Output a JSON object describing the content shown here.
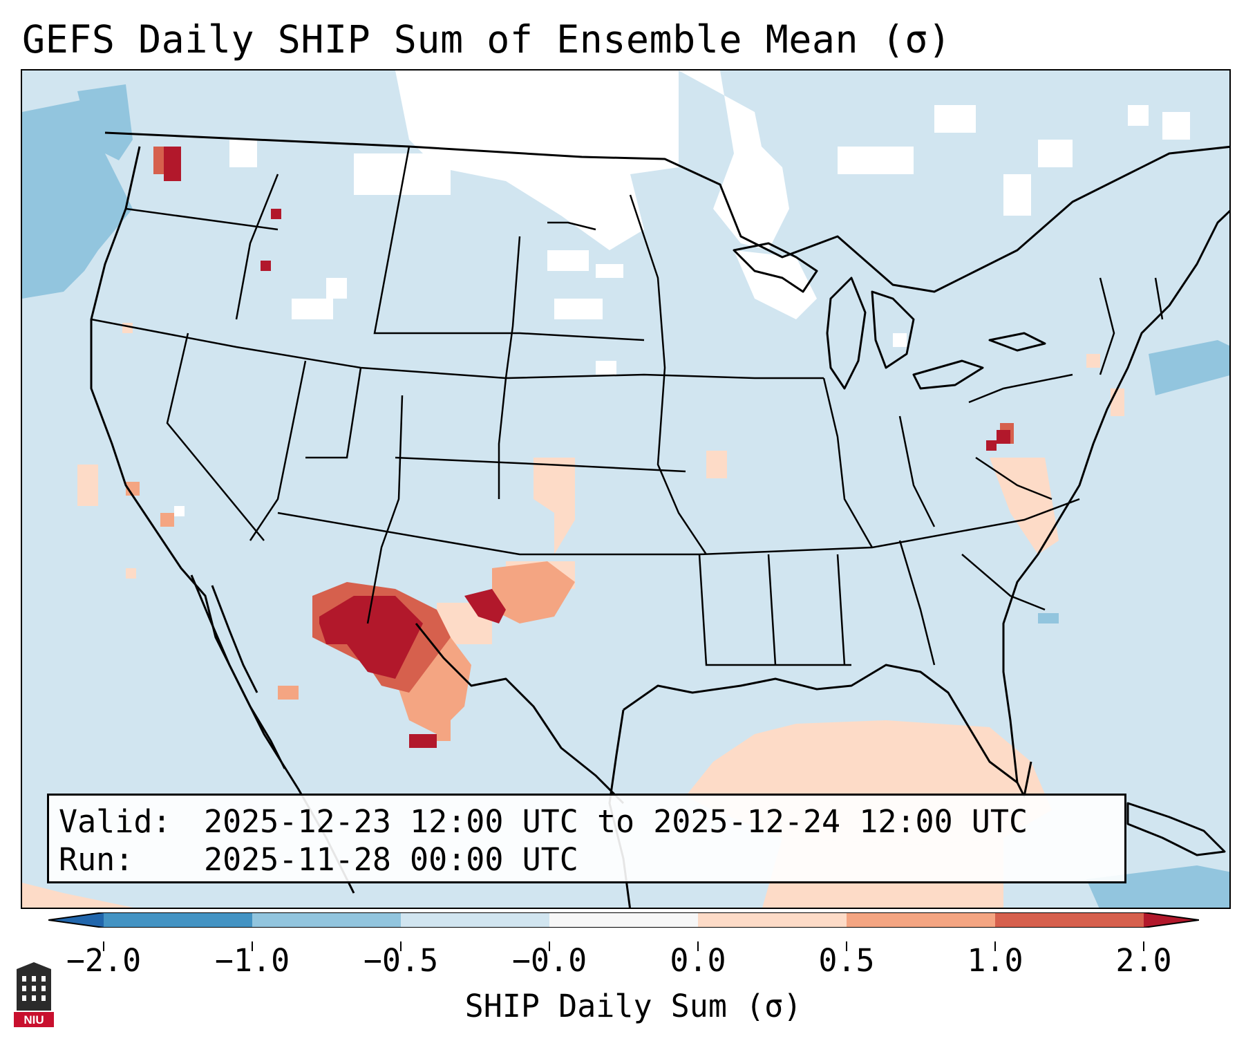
{
  "title": "GEFS Daily SHIP Sum of Ensemble Mean (σ)",
  "info": {
    "valid_label": "Valid:",
    "valid_value": "2025-12-23 12:00 UTC to 2025-12-24 12:00 UTC",
    "run_label": "Run:",
    "run_value": "2025-11-28 00:00 UTC"
  },
  "colorbar": {
    "label": "SHIP Daily Sum (σ)",
    "ticks": [
      "−2.0",
      "−1.0",
      "−0.5",
      "−0.0",
      "0.0",
      "0.5",
      "1.0",
      "2.0"
    ],
    "colors": [
      "#4393c3",
      "#92c5de",
      "#d1e5f0",
      "#f7f7f7",
      "#fddbc7",
      "#f4a582",
      "#d6604d"
    ],
    "under_color": "#2166ac",
    "over_color": "#b2182b"
  },
  "map": {
    "background_color": "#d1e5f0",
    "region": "Contiguous United States, northern Mexico, Gulf of Mexico",
    "highlight_areas": [
      {
        "name": "New Mexico / West Texas",
        "level": "above 2.0"
      },
      {
        "name": "Northwest Washington",
        "level": "above 2.0"
      },
      {
        "name": "Virginia",
        "level": "above 2.0"
      },
      {
        "name": "Gulf of Mexico",
        "level": "0.0 to 0.5"
      }
    ]
  },
  "logo": {
    "text": "NIU"
  }
}
